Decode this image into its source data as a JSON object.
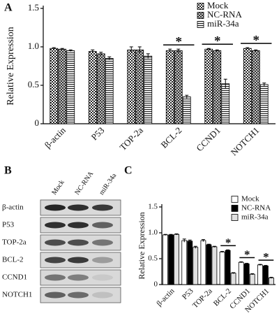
{
  "chart_data": [
    {
      "type": "bar",
      "panel_label": "A",
      "y_label": "Relative Expression",
      "categories": [
        "β-actin",
        "P53",
        "TOP-2a",
        "BCL-2",
        "CCND1",
        "NOTCH1"
      ],
      "category_annotations": [
        null,
        null,
        null,
        "*",
        "*",
        "*"
      ],
      "series": [
        {
          "name": "Mock",
          "color": "#333333",
          "pattern": "checker",
          "values": [
            0.98,
            0.94,
            0.96,
            0.95,
            0.97,
            0.98
          ],
          "errors": [
            0.01,
            0.02,
            0.04,
            0.02,
            0.01,
            0.01
          ]
        },
        {
          "name": "NC-RNA",
          "color": "#333333",
          "pattern": "cross",
          "values": [
            0.97,
            0.91,
            0.96,
            0.95,
            0.95,
            0.95
          ],
          "errors": [
            0.01,
            0.02,
            0.04,
            0.02,
            0.01,
            0.01
          ]
        },
        {
          "name": "miR-34a",
          "color": "#333333",
          "pattern": "hlines",
          "values": [
            0.95,
            0.85,
            0.88,
            0.35,
            0.52,
            0.51
          ],
          "errors": [
            0.01,
            0.02,
            0.03,
            0.02,
            0.06,
            0.02
          ]
        }
      ],
      "ylim": [
        0,
        1.5
      ],
      "yticks": [
        0,
        0.5,
        {
          "value": 1,
          "label": "1.0"
        },
        1.5
      ],
      "legend": "upper right"
    },
    {
      "type": "bar",
      "panel_label": "C",
      "y_label": "Relative Expression",
      "categories": [
        "β-actin",
        "P53",
        "TOP-2a",
        "BCL-2",
        "CCND1",
        "NOTCH1"
      ],
      "category_annotations": [
        null,
        null,
        null,
        "*",
        "*",
        "*"
      ],
      "series": [
        {
          "name": "Mock",
          "color": "#ffffff",
          "values": [
            0.96,
            0.85,
            0.85,
            0.63,
            0.43,
            0.38
          ],
          "errors": [
            0.01,
            0.03,
            0.02,
            0.01,
            0.01,
            0.01
          ]
        },
        {
          "name": "NC-RNA",
          "color": "#000000",
          "values": [
            0.96,
            0.84,
            0.77,
            0.66,
            0.4,
            0.36
          ],
          "errors": [
            0.01,
            0.02,
            0.01,
            0.01,
            0.01,
            0.01
          ]
        },
        {
          "name": "miR-34a",
          "color": "#e0e0e0",
          "values": [
            0.97,
            0.72,
            0.73,
            0.22,
            0.2,
            0.13
          ],
          "errors": [
            0.01,
            0.02,
            0.01,
            0.01,
            0.01,
            0.01
          ]
        }
      ],
      "ylim": [
        0,
        1.5
      ],
      "yticks": [
        0,
        0.5,
        {
          "value": 1,
          "label": "1.0"
        },
        1.5
      ],
      "legend": "upper right"
    }
  ],
  "blot": {
    "panel_label": "B",
    "lanes": [
      "Mock",
      "NC-RNA",
      "miR-34a"
    ],
    "rows": [
      "β-actin",
      "P53",
      "TOP-2a",
      "BCL-2",
      "CCND1",
      "NOTCH1"
    ]
  }
}
